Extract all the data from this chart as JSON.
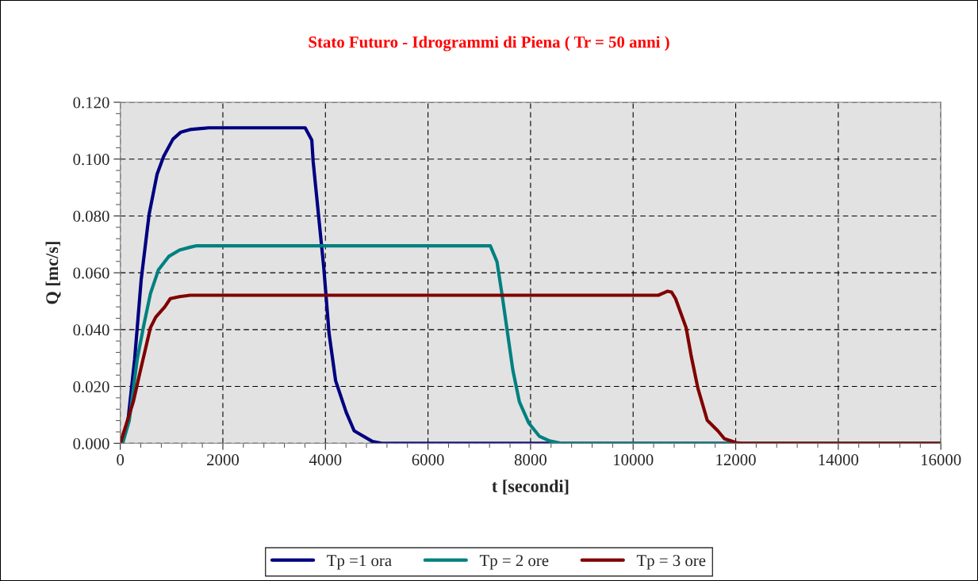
{
  "chart_data": {
    "type": "line",
    "title": "Stato Futuro - Idrogrammi di Piena ( Tr = 50 anni )",
    "xlabel": "t [secondi]",
    "ylabel": "Q [mc/s]",
    "xlim": [
      0,
      16000
    ],
    "xticks": [
      0,
      2000,
      4000,
      6000,
      8000,
      10000,
      12000,
      14000,
      16000
    ],
    "ylim": [
      0,
      0.12
    ],
    "yticks": [
      {
        "value": 0,
        "label": "0.000"
      },
      {
        "value": 0.02,
        "label": "0.020"
      },
      {
        "value": 0.04,
        "label": "0.040"
      },
      {
        "value": 0.06,
        "label": "0.060"
      },
      {
        "value": 0.08,
        "label": "0.080"
      },
      {
        "value": 0.1,
        "label": "0.100"
      },
      {
        "value": 0.12,
        "label": "0.120"
      }
    ],
    "grid": true,
    "legend": "bottom",
    "marker": "none",
    "line_style": "solid",
    "series": [
      {
        "name": "Tp =1 ora",
        "color": "#000080",
        "x": [
          0,
          150,
          280,
          407,
          562,
          716,
          846,
          1026,
          1181,
          1362,
          1723,
          3605,
          3734,
          3760,
          3863,
          3967,
          4070,
          4199,
          4405,
          4560,
          4920,
          5100,
          16000
        ],
        "values": [
          0,
          0.008,
          0.0296,
          0.0575,
          0.0806,
          0.0946,
          0.101,
          0.107,
          0.1095,
          0.1104,
          0.111,
          0.111,
          0.1067,
          0.0993,
          0.0807,
          0.062,
          0.0388,
          0.022,
          0.0109,
          0.0044,
          0.0006,
          0,
          0
        ]
      },
      {
        "name": "Tp = 2 ore",
        "color": "#008080",
        "x": [
          46,
          175,
          330,
          459,
          588,
          743,
          949,
          1155,
          1362,
          1490,
          7215,
          7345,
          7448,
          7551,
          7654,
          7782,
          7963,
          8170,
          8376,
          8600,
          16000
        ],
        "values": [
          0,
          0.008,
          0.0296,
          0.0416,
          0.0527,
          0.061,
          0.0658,
          0.068,
          0.069,
          0.0695,
          0.0695,
          0.0639,
          0.0518,
          0.0388,
          0.0258,
          0.0146,
          0.0072,
          0.0025,
          0.0008,
          0,
          0
        ]
      },
      {
        "name": "Tp = 3 ore",
        "color": "#800000",
        "x": [
          0,
          253,
          382,
          588,
          691,
          871,
          975,
          1155,
          1362,
          10491,
          10672,
          10749,
          10827,
          11033,
          11136,
          11264,
          11445,
          11651,
          11780,
          12012,
          12130,
          16000
        ],
        "values": [
          0,
          0.0146,
          0.0248,
          0.0407,
          0.0444,
          0.0481,
          0.0509,
          0.0516,
          0.0521,
          0.0521,
          0.0535,
          0.0532,
          0.0509,
          0.0407,
          0.0304,
          0.0193,
          0.0081,
          0.0044,
          0.0016,
          0.0002,
          0,
          0
        ]
      }
    ]
  }
}
